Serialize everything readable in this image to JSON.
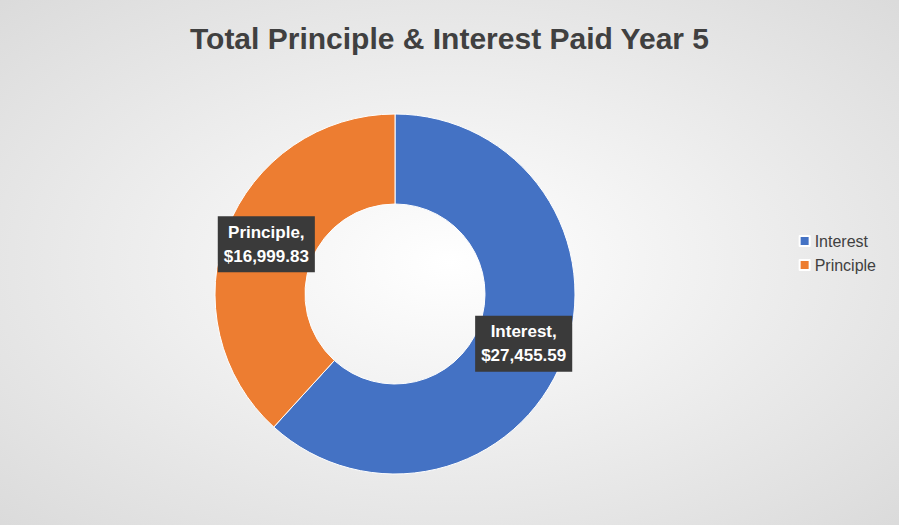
{
  "chart_data": {
    "type": "doughnut",
    "title": "Total Principle & Interest Paid Year 5",
    "categories": [
      "Interest",
      "Principle"
    ],
    "values": [
      27455.59,
      16999.83
    ],
    "value_labels": [
      "Interest, $27,455.59",
      "Principle, $16,999.83"
    ],
    "colors": [
      "#4472c4",
      "#ed7d31"
    ],
    "legend": "right",
    "data_labels": true
  }
}
